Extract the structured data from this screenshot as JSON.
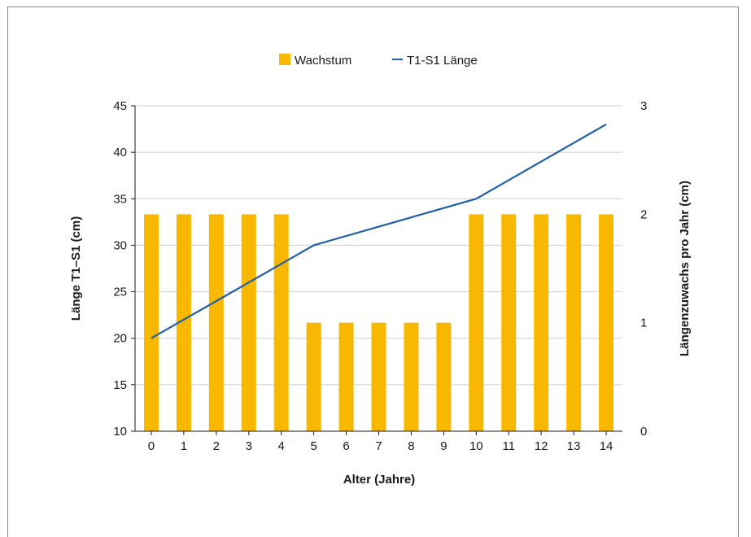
{
  "chart_data": {
    "type": "bar+line",
    "categories": [
      "0",
      "1",
      "2",
      "3",
      "4",
      "5",
      "6",
      "7",
      "8",
      "9",
      "10",
      "11",
      "12",
      "13",
      "14"
    ],
    "series": [
      {
        "name": "Wachstum",
        "type": "bar",
        "axis": "right",
        "color": "#f9b800",
        "values": [
          2,
          2,
          2,
          2,
          2,
          1,
          1,
          1,
          1,
          1,
          2,
          2,
          2,
          2,
          2
        ]
      },
      {
        "name": "T1-S1 Länge",
        "type": "line",
        "axis": "left",
        "color": "#1f5ea8",
        "values": [
          20,
          22,
          24,
          26,
          28,
          30,
          31,
          32,
          33,
          34,
          35,
          37,
          39,
          41,
          43
        ]
      }
    ],
    "xlabel": "Alter (Jahre)",
    "ylabel_left": "Länge T1–S1 (cm)",
    "ylabel_right": "Längenzuwachs pro Jahr (cm)",
    "ylim_left": [
      10,
      45
    ],
    "yticks_left": [
      "10",
      "15",
      "20",
      "25",
      "30",
      "35",
      "40",
      "45"
    ],
    "ylim_right": [
      0,
      3
    ],
    "yticks_right": [
      "0",
      "1",
      "2",
      "3"
    ],
    "grid": true,
    "legend": "top-center"
  }
}
